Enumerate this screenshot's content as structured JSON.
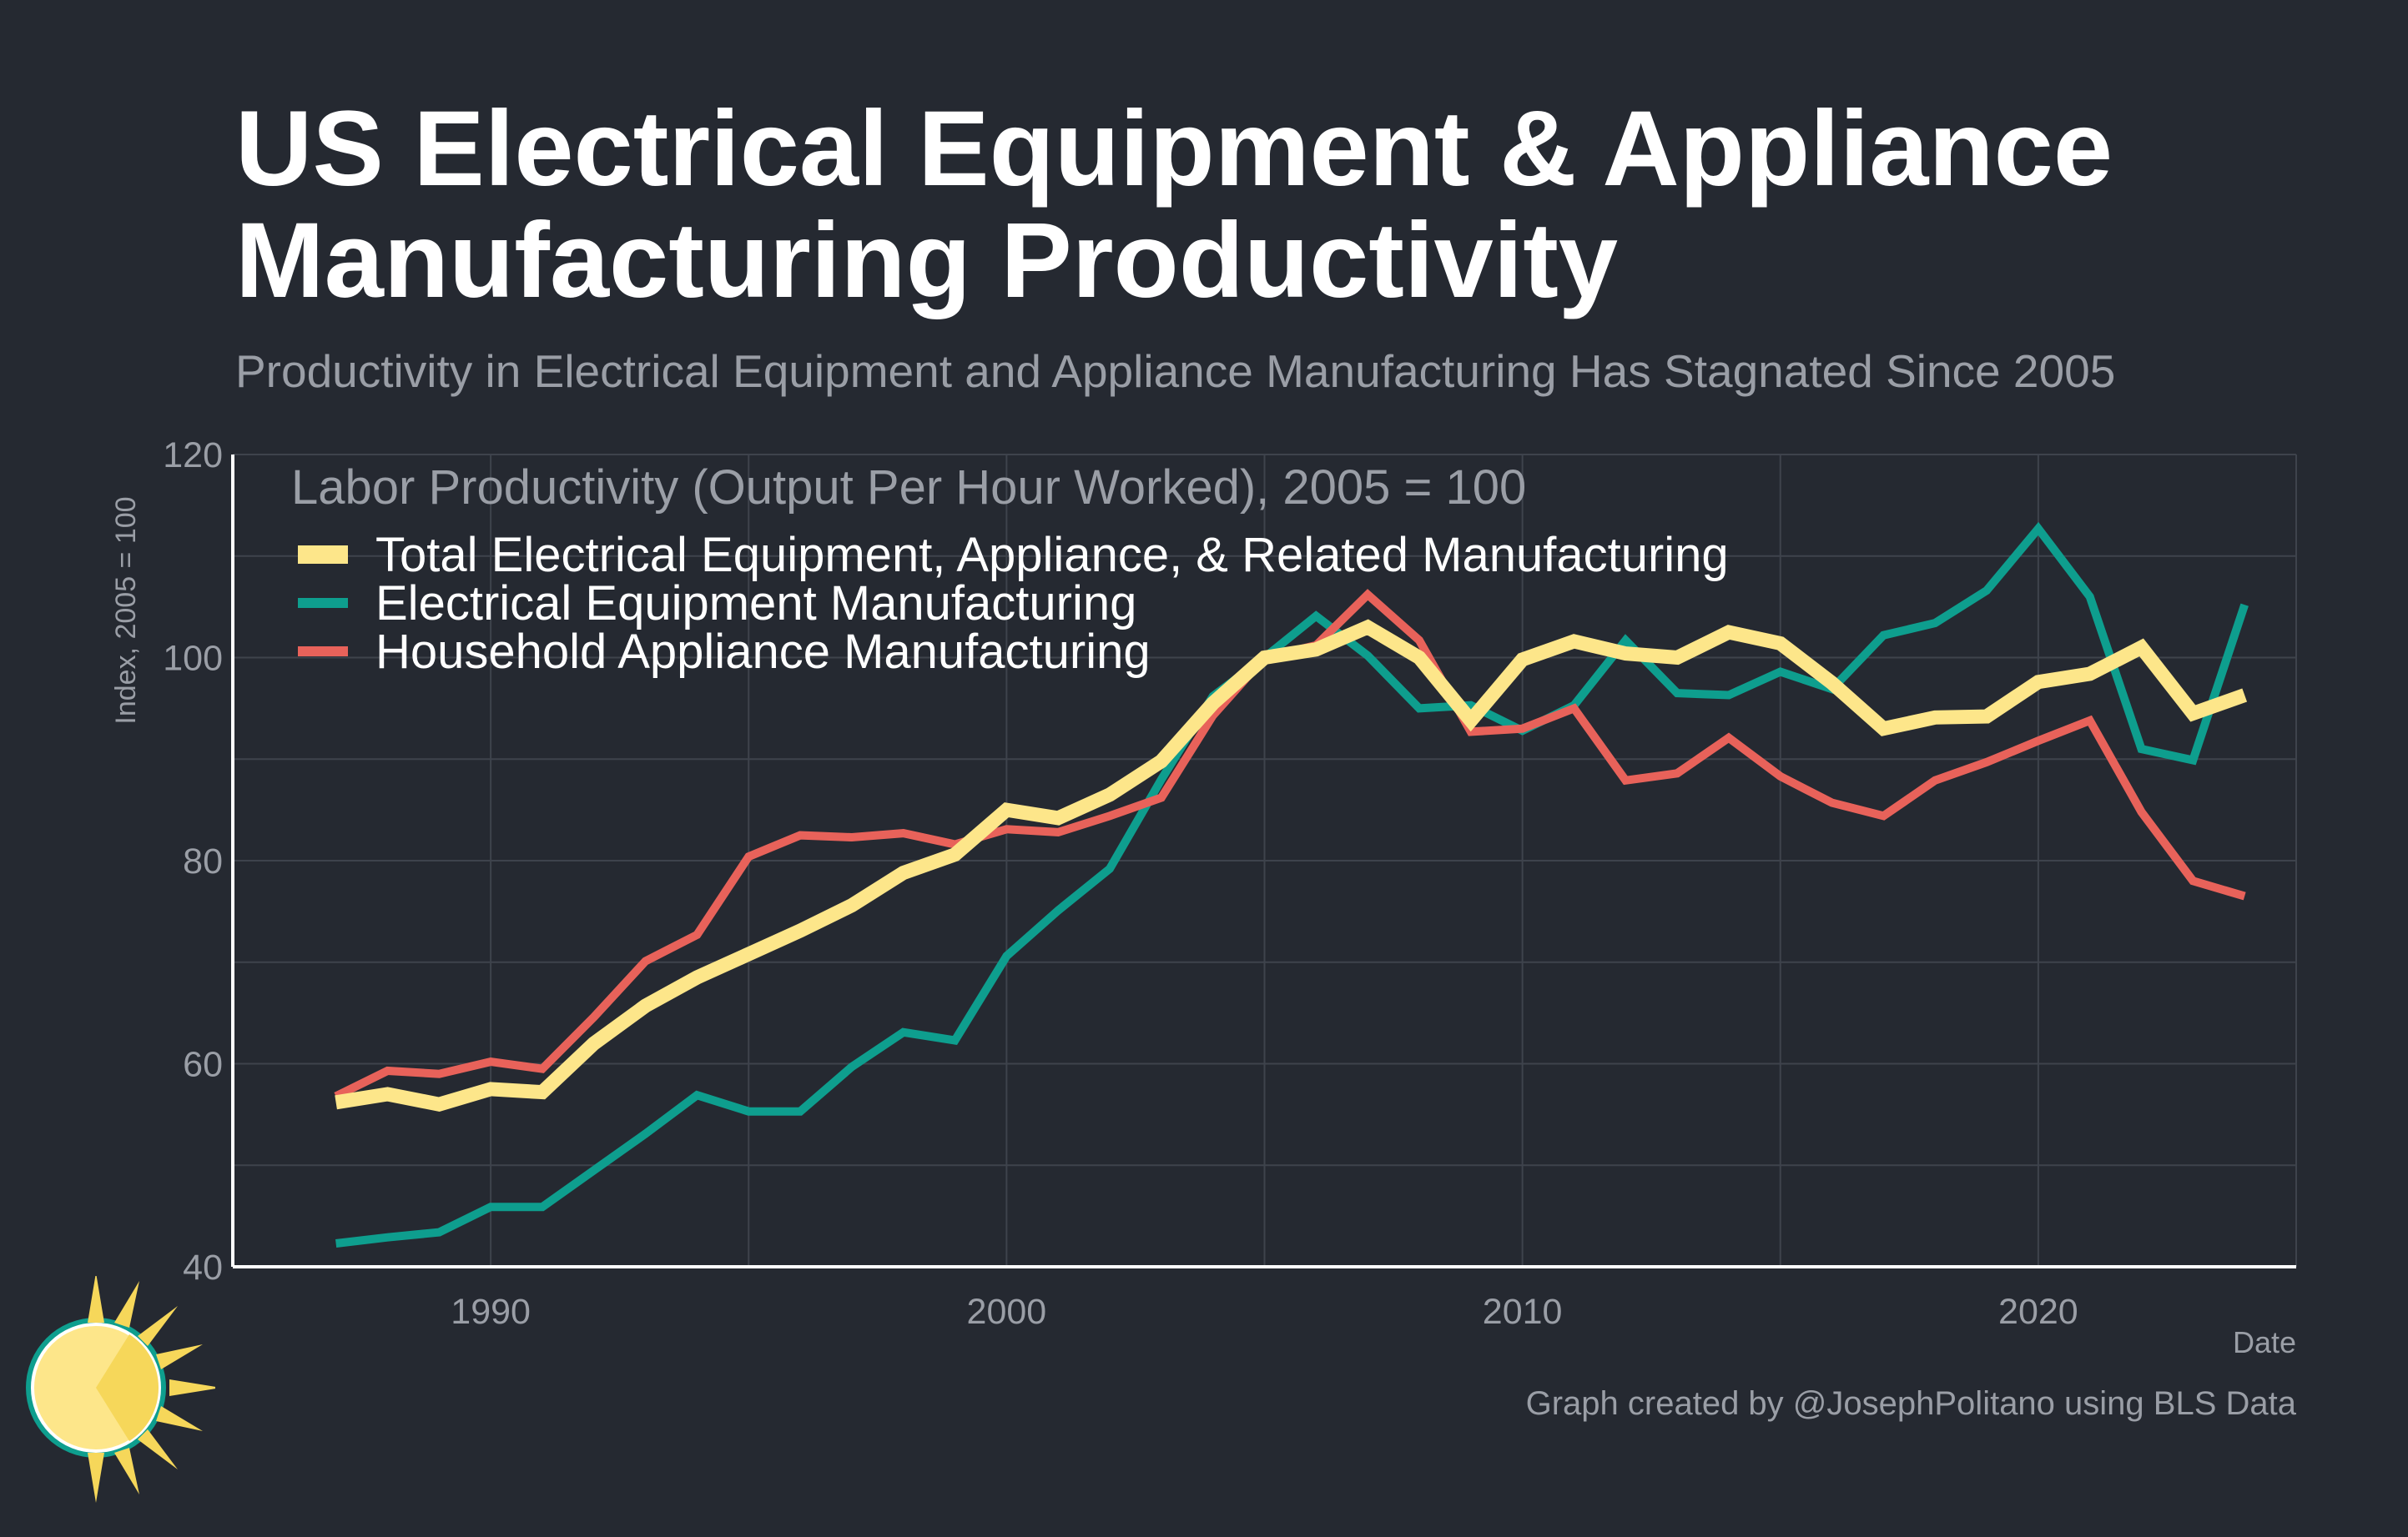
{
  "title_line1": "US Electrical Equipment & Appliance",
  "title_line2": "Manufacturing Productivity",
  "subtitle": "Productivity in Electrical Equipment and Appliance Manufacturing Has Stagnated Since 2005",
  "caption": "Graph created by @JosephPolitano using BLS Data",
  "logo_icon": "sun-logo-icon",
  "colors": {
    "background": "#252931",
    "grid": "#3e434c",
    "axis_text": "#9a9ea6",
    "title": "#ffffff"
  },
  "chart_data": {
    "type": "line",
    "legend_title": "Labor Productivity (Output Per Hour Worked), 2005 = 100",
    "legend_position": "top-left",
    "xlabel": "Date",
    "ylabel": "Index, 2005 = 100",
    "xlim": [
      1985,
      2025
    ],
    "ylim": [
      40,
      120
    ],
    "x_ticks": [
      1990,
      2000,
      2010,
      2020
    ],
    "y_ticks": [
      40,
      60,
      80,
      100,
      120
    ],
    "grid": true,
    "x": [
      1987,
      1988,
      1989,
      1990,
      1991,
      1992,
      1993,
      1994,
      1995,
      1996,
      1997,
      1998,
      1999,
      2000,
      2001,
      2002,
      2003,
      2004,
      2005,
      2006,
      2007,
      2008,
      2009,
      2010,
      2011,
      2012,
      2013,
      2014,
      2015,
      2016,
      2017,
      2018,
      2019,
      2020,
      2021,
      2022,
      2023,
      2024
    ],
    "series": [
      {
        "name": "Total Electrical Equipment, Appliance, & Related Manufacturing",
        "color": "#fde68a",
        "values": [
          56.2,
          57.0,
          56.0,
          57.5,
          57.2,
          62.0,
          65.7,
          68.5,
          70.8,
          73.1,
          75.6,
          78.8,
          80.6,
          85.0,
          84.2,
          86.5,
          89.8,
          95.5,
          100.0,
          100.8,
          103.0,
          100.0,
          93.8,
          99.8,
          101.6,
          100.4,
          100.0,
          102.5,
          101.4,
          97.5,
          93.0,
          94.1,
          94.2,
          97.6,
          98.4,
          101.0,
          94.5,
          96.3
        ]
      },
      {
        "name": "Electrical Equipment Manufacturing",
        "color": "#0e9e8e",
        "values": [
          42.3,
          42.9,
          43.4,
          45.9,
          45.9,
          49.5,
          53.1,
          56.9,
          55.3,
          55.3,
          59.7,
          63.1,
          62.3,
          70.6,
          75.1,
          79.2,
          88.0,
          96.2,
          100.0,
          104.1,
          100.2,
          95.0,
          95.3,
          92.8,
          95.3,
          101.7,
          96.5,
          96.3,
          98.6,
          96.9,
          102.2,
          103.4,
          106.6,
          112.7,
          106.0,
          91.0,
          89.9,
          105.2
        ]
      },
      {
        "name": "Household Appliance Manufacturing",
        "color": "#e8625a",
        "values": [
          56.8,
          59.3,
          59.0,
          60.2,
          59.5,
          64.6,
          70.1,
          72.7,
          80.4,
          82.5,
          82.3,
          82.7,
          81.6,
          83.1,
          82.8,
          84.4,
          86.2,
          94.3,
          100.0,
          101.2,
          106.2,
          101.7,
          92.7,
          93.0,
          95.0,
          87.9,
          88.6,
          92.1,
          88.3,
          85.7,
          84.4,
          87.9,
          89.7,
          91.8,
          93.8,
          84.8,
          78.0,
          76.5
        ]
      }
    ]
  }
}
